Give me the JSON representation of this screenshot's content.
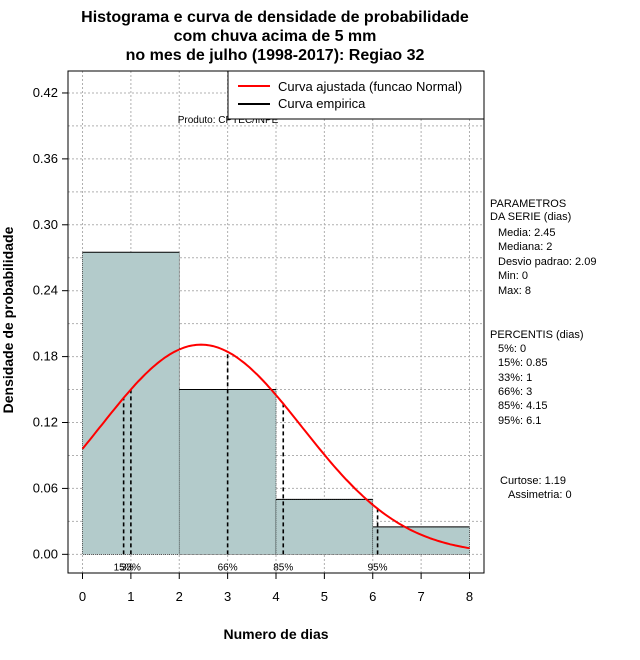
{
  "chart_data": {
    "type": "bar",
    "title": [
      "Histograma e curva de densidade de probabilidade",
      "com chuva acima de 5 mm",
      "no mes de julho (1998-2017): Regiao 32"
    ],
    "xlabel": "Numero de dias",
    "ylabel": "Densidade de probabilidade",
    "xlim": [
      -0.3,
      8.3
    ],
    "ylim": [
      -0.017,
      0.44
    ],
    "xticks": [
      0,
      1,
      2,
      3,
      4,
      5,
      6,
      7,
      8
    ],
    "xtick_labels": [
      "0",
      "1",
      "2",
      "3",
      "4",
      "5",
      "6",
      "7",
      "8"
    ],
    "yticks": [
      0.0,
      0.06,
      0.12,
      0.18,
      0.24,
      0.3,
      0.36,
      0.42
    ],
    "ytick_labels": [
      "0.00",
      "0.06",
      "0.12",
      "0.18",
      "0.24",
      "0.30",
      "0.36",
      "0.42"
    ],
    "grid": true,
    "bins": [
      {
        "start": 0,
        "end": 2,
        "density": 0.275
      },
      {
        "start": 2,
        "end": 4,
        "density": 0.15
      },
      {
        "start": 4,
        "end": 6,
        "density": 0.05
      },
      {
        "start": 6,
        "end": 8,
        "density": 0.025
      }
    ],
    "normal_curve": {
      "name": "Curva ajustada (funcao Normal)",
      "mean": 2.45,
      "sd": 2.09,
      "x_range": [
        0,
        8
      ],
      "color": "#ff0000"
    },
    "empirical_curve": {
      "name": "Curva empirica",
      "color": "#000000"
    },
    "percentile_lines": [
      {
        "x": 0.85,
        "label": "15%"
      },
      {
        "x": 1.0,
        "label": "33%"
      },
      {
        "x": 3.0,
        "label": "66%"
      },
      {
        "x": 4.15,
        "label": "85%"
      },
      {
        "x": 6.1,
        "label": "95%"
      }
    ],
    "annotation": "Produto: CPTEC/INPE",
    "legend_position": "top-right",
    "bar_fill": "#b3cbcb",
    "grid_color": "#b0b0b0"
  },
  "parameters": {
    "heading": [
      "PARAMETROS",
      "DA SERIE (dias)"
    ],
    "items": [
      "Media: 2.45",
      "Mediana: 2",
      "Desvio padrao: 2.09",
      "Min: 0",
      "Max: 8"
    ]
  },
  "percentiles": {
    "heading": "PERCENTIS (dias)",
    "items": [
      "5%: 0",
      "15%: 0.85",
      "33%: 1",
      "66%: 3",
      "85%: 4.15",
      "95%: 6.1"
    ]
  },
  "stats": {
    "curtose": "Curtose: 1.19",
    "assimetria": "Assimetria: 0"
  }
}
